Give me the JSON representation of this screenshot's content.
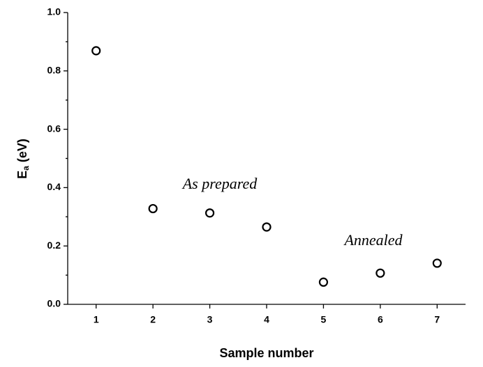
{
  "chart_data": {
    "type": "scatter",
    "xlabel": "Sample number",
    "ylabel": [
      "E",
      "a",
      "(eV)"
    ],
    "x": [
      1,
      2,
      3,
      4,
      5,
      6,
      7
    ],
    "series": [
      {
        "color": "#000000",
        "values": [
          0.869,
          0.328,
          0.313,
          0.265,
          0.076,
          0.107,
          0.141
        ]
      }
    ],
    "xlim": [
      0.5,
      7.5
    ],
    "xticks": [
      1,
      2,
      3,
      4,
      5,
      6,
      7
    ],
    "ylim": [
      0,
      1
    ],
    "yticks": [
      {
        "value": 0,
        "label": "0.0"
      },
      {
        "value": 0.2,
        "label": "0.2"
      },
      {
        "value": 0.4,
        "label": "0.4"
      },
      {
        "value": 0.6,
        "label": "0.6"
      },
      {
        "value": 0.8,
        "label": "0.8"
      },
      {
        "value": 1,
        "label": "1.0"
      }
    ],
    "yminorticks": [
      0.1,
      0.3,
      0.5,
      0.7,
      0.9
    ],
    "annotations": [
      "As prepared",
      "Annealed"
    ]
  }
}
